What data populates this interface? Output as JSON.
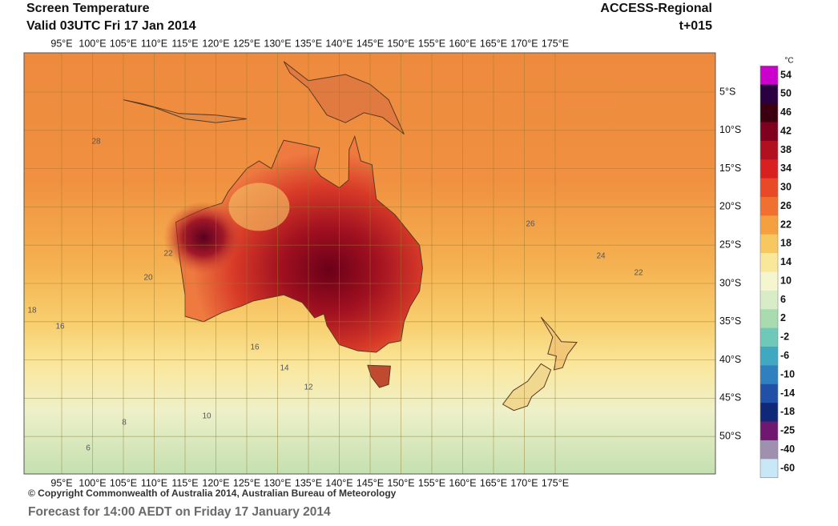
{
  "header": {
    "title": "Screen Temperature",
    "valid": "Valid 03UTC Fri 17 Jan 2014",
    "model": "ACCESS-Regional",
    "lead": "t+015"
  },
  "map": {
    "lon_labels": [
      "95°E",
      "100°E",
      "105°E",
      "110°E",
      "115°E",
      "120°E",
      "125°E",
      "130°E",
      "135°E",
      "140°E",
      "145°E",
      "150°E",
      "155°E",
      "160°E",
      "165°E",
      "170°E",
      "175°E"
    ],
    "lat_labels": [
      "5°S",
      "10°S",
      "15°S",
      "20°S",
      "25°S",
      "30°S",
      "35°S",
      "40°S",
      "45°S",
      "50°S"
    ],
    "contour_labels": [
      "28",
      "26",
      "24",
      "22",
      "20",
      "18",
      "16",
      "14",
      "12",
      "10",
      "8",
      "6",
      "22",
      "16"
    ]
  },
  "legend": {
    "unit": "°C",
    "levels": [
      "54",
      "50",
      "46",
      "42",
      "38",
      "34",
      "30",
      "26",
      "22",
      "18",
      "14",
      "10",
      "6",
      "2",
      "-2",
      "-6",
      "-10",
      "-14",
      "-18",
      "-25",
      "-40",
      "-60"
    ],
    "colors": [
      "#cc00cc",
      "#2a0040",
      "#3a0010",
      "#800020",
      "#b01020",
      "#d82020",
      "#e84a28",
      "#f07030",
      "#f5a040",
      "#f8c860",
      "#fae89a",
      "#f5f5d0",
      "#d8ecc8",
      "#a8dcb0",
      "#70c8b8",
      "#40a8c0",
      "#3080c0",
      "#2050a8",
      "#102878",
      "#701870",
      "#a090b0",
      "#c8e8f8"
    ]
  },
  "footer": {
    "copyright": "© Copyright Commonwealth of Australia 2014, Australian Bureau of Meteorology",
    "forecast": "Forecast for 14:00 AEDT on Friday 17 January 2014"
  }
}
